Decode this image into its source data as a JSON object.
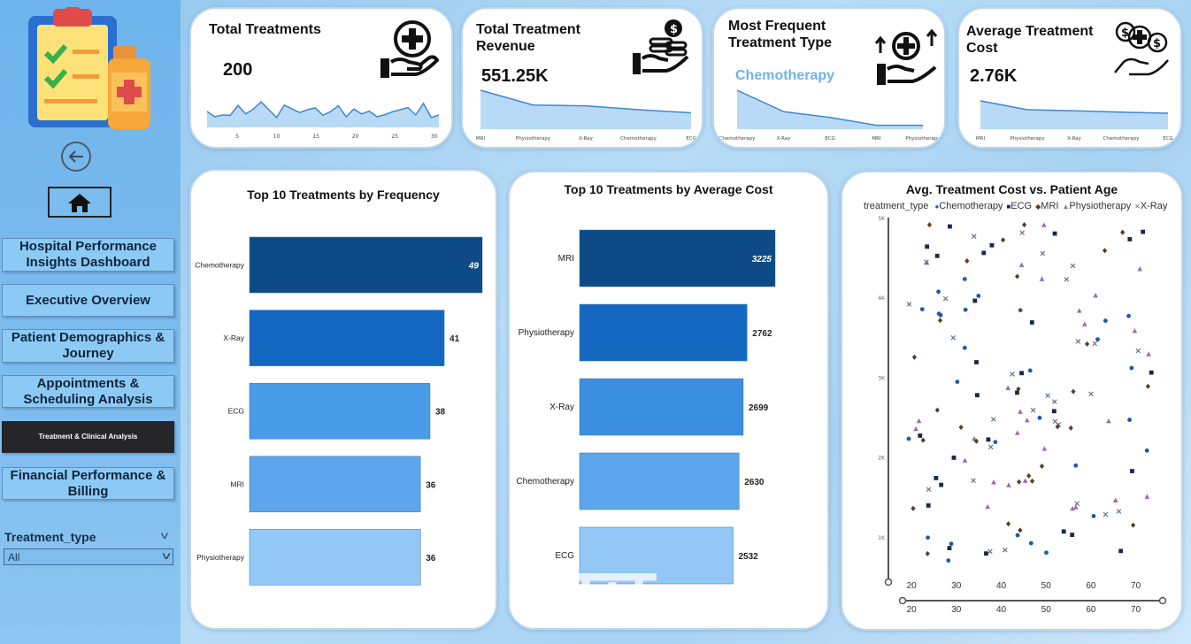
{
  "sidebar": {
    "nav": [
      {
        "label": "Hospital Performance Insights Dashboard"
      },
      {
        "label": "Executive Overview"
      },
      {
        "label": "Patient Demographics & Journey"
      },
      {
        "label": "Appointments & Scheduling Analysis"
      },
      {
        "label": "Treatment & Clinical Analysis"
      },
      {
        "label": "Financial Performance & Billing"
      }
    ],
    "filter": {
      "label": "Treatment_type",
      "value": "All"
    }
  },
  "kpis": {
    "total_treatments": {
      "title": "Total Treatments",
      "value": "200",
      "ticks": [
        "5",
        "10",
        "15",
        "20",
        "25",
        "30"
      ],
      "spark": [
        0.45,
        0.3,
        0.35,
        0.34,
        0.62,
        0.38,
        0.52,
        0.72,
        0.5,
        0.28,
        0.63,
        0.52,
        0.42,
        0.5,
        0.55,
        0.34,
        0.45,
        0.61,
        0.3,
        0.52,
        0.38,
        0.46,
        0.3,
        0.36,
        0.44,
        0.5,
        0.56,
        0.35,
        0.68,
        0.28,
        0.35
      ]
    },
    "total_revenue": {
      "title": "Total Treatment Revenue",
      "value": "551.25K",
      "categories": [
        "MRI",
        "Physiotherapy",
        "X-Ray",
        "Chemotherapy",
        "ECG"
      ],
      "spark": [
        1.0,
        0.62,
        0.6,
        0.5,
        0.42
      ]
    },
    "most_frequent": {
      "title": "Most Frequent Treatment Type",
      "value": "Chemotherapy",
      "categories": [
        "Chemotherapy",
        "X-Ray",
        "ECG",
        "MRI",
        "Physiotherapy"
      ],
      "spark": [
        1.0,
        0.45,
        0.3,
        0.1,
        0.1
      ]
    },
    "average_cost": {
      "title": "Average Treatment Cost",
      "value": "2.76K",
      "categories": [
        "MRI",
        "Physiotherapy",
        "X-Ray",
        "Chemotherapy",
        "ECG"
      ],
      "spark": [
        0.8,
        0.55,
        0.52,
        0.48,
        0.45
      ]
    }
  },
  "chart_data": [
    {
      "type": "bar",
      "title": "Top 10 Treatments by Frequency",
      "categories": [
        "Chemotherapy",
        "X-Ray",
        "ECG",
        "MRI",
        "Physiotherapy"
      ],
      "values": [
        49,
        41,
        38,
        36,
        36
      ],
      "colors": [
        "#0d4a86",
        "#1468c2",
        "#4a9be8",
        "#5da6ec",
        "#93c7f5"
      ]
    },
    {
      "type": "bar",
      "title": "Top 10 Treatments by Average Cost",
      "categories": [
        "MRI",
        "Physiotherapy",
        "X-Ray",
        "Chemotherapy",
        "ECG"
      ],
      "values": [
        3225,
        2762,
        2699,
        2630,
        2532
      ],
      "colors": [
        "#0d4a86",
        "#1468c2",
        "#3a8fe0",
        "#5da6ec",
        "#93c7f5"
      ]
    },
    {
      "type": "scatter",
      "title": "Avg. Treatment Cost vs. Patient Age",
      "legend_title": "treatment_type",
      "series": [
        {
          "name": "Chemotherapy",
          "marker": "●",
          "color": "#1f5aa6"
        },
        {
          "name": "ECG",
          "marker": "■",
          "color": "#18284a"
        },
        {
          "name": "MRI",
          "marker": "◆",
          "color": "#5a3a2a"
        },
        {
          "name": "Physiotherapy",
          "marker": "▲",
          "color": "#9a6ab0"
        },
        {
          "name": "X-Ray",
          "marker": "✕",
          "color": "#5a6a80"
        }
      ],
      "xticks": [
        "20",
        "30",
        "40",
        "50",
        "60",
        "70"
      ],
      "yticks": [
        "5K",
        "4K",
        "3K",
        "2K",
        "1K"
      ],
      "xlim": [
        18,
        76
      ],
      "ylim": [
        500,
        5000
      ]
    }
  ]
}
